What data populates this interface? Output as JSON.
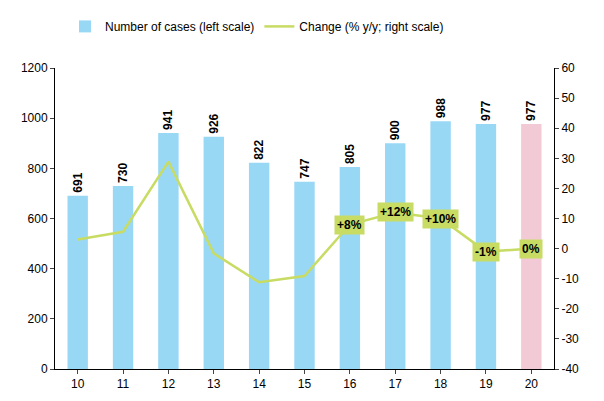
{
  "chart_data": {
    "type": "bar",
    "categories": [
      "10",
      "11",
      "12",
      "13",
      "14",
      "15",
      "16",
      "17",
      "18",
      "19",
      "20"
    ],
    "series": [
      {
        "name": "Number of cases (left scale)",
        "type": "bar",
        "colors": [
          "#99d8f5",
          "#99d8f5",
          "#99d8f5",
          "#99d8f5",
          "#99d8f5",
          "#99d8f5",
          "#99d8f5",
          "#99d8f5",
          "#99d8f5",
          "#99d8f5",
          "#f2cad6"
        ],
        "values": [
          691,
          730,
          941,
          926,
          822,
          747,
          805,
          900,
          988,
          977,
          977
        ],
        "data_labels": true
      },
      {
        "name": "Change (% y/y; right scale)",
        "type": "line",
        "axis": "y2",
        "color": "#c8dc64",
        "marker": "none",
        "values": [
          3,
          5.6,
          28.9,
          -1.6,
          -11.2,
          -9.1,
          8,
          12,
          10,
          -1,
          0
        ],
        "value_labels": [
          null,
          null,
          null,
          null,
          null,
          null,
          "+8%",
          "+12%",
          "+10%",
          "-1%",
          "0%"
        ]
      }
    ],
    "ylim": [
      0,
      1200
    ],
    "yticks": [
      0,
      200,
      400,
      600,
      800,
      1000,
      1200
    ],
    "y2lim": [
      -40,
      60
    ],
    "y2ticks": [
      -40,
      -30,
      -20,
      -10,
      0,
      10,
      20,
      30,
      40,
      50,
      60
    ],
    "grid": false,
    "legend": "top"
  }
}
